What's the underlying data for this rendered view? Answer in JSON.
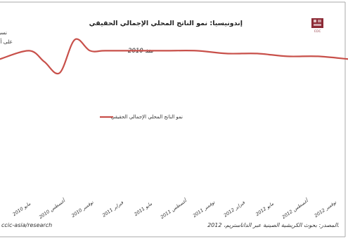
{
  "colors": {
    "line": "#c8504a",
    "frame": "#aaaaaa",
    "logo": "#8c2a35"
  },
  "logo": {
    "name": "ccic-logo-icon",
    "text": "CCIC"
  },
  "chart_data": {
    "type": "line",
    "title": "إندونيسيا: نمو الناتج المحلي الإجمالي الحقيقي",
    "subtitle": "منذ 2010",
    "ylabel_lines": [
      "نسبة",
      "على أ"
    ],
    "categories": [
      "مايو 2010",
      "أغسطس 2010",
      "نوفمبر 2010",
      "فبراير 2011",
      "مايو 2011",
      "أغسطس 2011",
      "نوفمبر 2011",
      "فبراير 2012",
      "مايو 2012",
      "أغسطس 2012",
      "نوفمبر 2012"
    ],
    "series": [
      {
        "name": "نمو الناتج المحلي الإجمالي الحقيقي",
        "x": [
          0,
          0.5,
          1,
          1.5,
          2,
          2.5,
          3,
          4,
          5,
          6,
          7,
          8,
          9,
          10,
          11
        ],
        "values": [
          6.2,
          6.5,
          6.1,
          5.7,
          6.9,
          6.5,
          6.5,
          6.5,
          6.5,
          6.5,
          6.4,
          6.4,
          6.3,
          6.3,
          6.2
        ]
      }
    ],
    "ylim": [
      0,
      8
    ],
    "grid": false,
    "legend": "center"
  },
  "footer": {
    "source": "المصدر: بحوث الكريشية الصينية عبر الداتاستريم، 2012.",
    "url": "ccic-asia/research"
  }
}
